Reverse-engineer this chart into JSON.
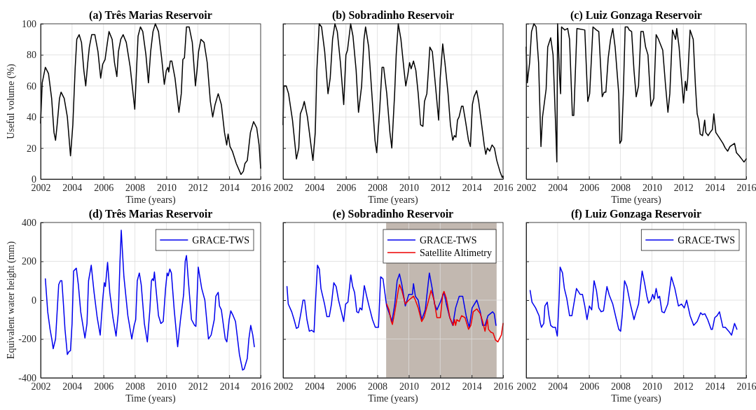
{
  "chart_data": [
    {
      "type": "line",
      "title": "(a) Três Marias Reservoir",
      "xlabel": "Time (years)",
      "ylabel": "Useful volume (%)",
      "xlim": [
        2002,
        2016
      ],
      "xticks": [
        2002,
        2004,
        2006,
        2008,
        2010,
        2012,
        2014,
        2016
      ],
      "ylim": [
        0,
        100
      ],
      "yticks": [
        0,
        20,
        40,
        60,
        80,
        100
      ],
      "grid": true,
      "series": [
        {
          "color": "#000000",
          "x": [
            2002,
            2002.1,
            2002.3,
            2002.5,
            2002.7,
            2002.85,
            2002.95,
            2003.05,
            2003.2,
            2003.3,
            2003.5,
            2003.7,
            2003.9,
            2004.05,
            2004.2,
            2004.3,
            2004.45,
            2004.6,
            2004.75,
            2004.87,
            2005.0,
            2005.1,
            2005.25,
            2005.45,
            2005.65,
            2005.82,
            2005.95,
            2006.1,
            2006.25,
            2006.35,
            2006.55,
            2006.7,
            2006.85,
            2006.95,
            2007.1,
            2007.25,
            2007.45,
            2007.7,
            2007.99,
            2008.1,
            2008.2,
            2008.35,
            2008.5,
            2008.7,
            2008.86,
            2009.0,
            2009.15,
            2009.3,
            2009.5,
            2009.7,
            2009.87,
            2010.0,
            2010.1,
            2010.15,
            2010.25,
            2010.35,
            2010.55,
            2010.8,
            2010.95,
            2011.05,
            2011.15,
            2011.28,
            2011.45,
            2011.65,
            2011.85,
            2011.95,
            2012.05,
            2012.2,
            2012.4,
            2012.6,
            2012.8,
            2012.95,
            2013.1,
            2013.3,
            2013.5,
            2013.7,
            2013.84,
            2013.93,
            2014.05,
            2014.2,
            2014.45,
            2014.75,
            2014.9,
            2015.0,
            2015.15,
            2015.35,
            2015.55,
            2015.75,
            2015.9,
            2016
          ],
          "values": [
            36,
            62,
            72,
            68,
            52,
            30,
            25,
            35,
            52,
            56,
            52,
            40,
            15,
            35,
            72,
            90,
            93,
            88,
            70,
            60,
            75,
            85,
            93,
            93,
            82,
            65,
            74,
            77,
            88,
            95,
            90,
            75,
            66,
            82,
            90,
            93,
            88,
            72,
            45,
            70,
            92,
            98,
            95,
            80,
            62,
            82,
            95,
            100,
            95,
            78,
            61,
            70,
            72,
            69,
            76,
            76,
            65,
            43,
            55,
            77,
            78,
            98,
            98,
            88,
            60,
            70,
            82,
            90,
            88,
            75,
            50,
            40,
            48,
            55,
            48,
            30,
            22,
            29,
            21,
            18,
            10,
            3,
            5,
            10,
            12,
            30,
            37,
            33,
            22,
            7
          ]
        }
      ]
    },
    {
      "type": "line",
      "title": "(b) Sobradinho Reservoir",
      "xlabel": "Time (years)",
      "xlim": [
        2002,
        2016
      ],
      "xticks": [
        2002,
        2004,
        2006,
        2008,
        2010,
        2012,
        2014,
        2016
      ],
      "ylim": [
        0,
        100
      ],
      "yticks": [
        0,
        20,
        40,
        60,
        80,
        100
      ],
      "grid": true,
      "tick_labels": "x",
      "series": [
        {
          "color": "#000000",
          "x": [
            2002,
            2002.05,
            2002.2,
            2002.35,
            2002.6,
            2002.85,
            2003.0,
            2003.1,
            2003.25,
            2003.35,
            2003.55,
            2003.8,
            2003.9,
            2004.05,
            2004.15,
            2004.3,
            2004.45,
            2004.65,
            2004.86,
            2005.0,
            2005.15,
            2005.3,
            2005.45,
            2005.65,
            2005.86,
            2006.0,
            2006.1,
            2006.3,
            2006.45,
            2006.65,
            2006.8,
            2007.0,
            2007.15,
            2007.25,
            2007.45,
            2007.65,
            2007.85,
            2007.96,
            2008.15,
            2008.3,
            2008.4,
            2008.6,
            2008.8,
            2008.92,
            2009.1,
            2009.2,
            2009.33,
            2009.5,
            2009.7,
            2009.81,
            2009.95,
            2010.05,
            2010.15,
            2010.3,
            2010.45,
            2010.6,
            2010.75,
            2010.9,
            2011.0,
            2011.15,
            2011.25,
            2011.34,
            2011.5,
            2011.7,
            2011.9,
            2012.0,
            2012.16,
            2012.3,
            2012.5,
            2012.65,
            2012.8,
            2012.9,
            2013.0,
            2013.1,
            2013.2,
            2013.36,
            2013.45,
            2013.6,
            2013.8,
            2013.92,
            2014.05,
            2014.15,
            2014.32,
            2014.45,
            2014.6,
            2014.8,
            2014.9,
            2015.0,
            2015.15,
            2015.3,
            2015.45,
            2015.6,
            2015.8,
            2015.95,
            2016
          ],
          "values": [
            35,
            60,
            60,
            55,
            38,
            13,
            20,
            42,
            46,
            50,
            40,
            20,
            12,
            30,
            70,
            100,
            98,
            82,
            55,
            65,
            90,
            100,
            95,
            75,
            48,
            80,
            83,
            100,
            92,
            70,
            43,
            60,
            90,
            98,
            85,
            55,
            25,
            17,
            45,
            72,
            72,
            55,
            30,
            20,
            55,
            80,
            100,
            90,
            70,
            60,
            68,
            75,
            71,
            76,
            70,
            55,
            35,
            34,
            50,
            55,
            70,
            85,
            82,
            60,
            38,
            65,
            87,
            75,
            55,
            35,
            25,
            28,
            27,
            38,
            40,
            47,
            47,
            38,
            25,
            21,
            48,
            53,
            57,
            50,
            38,
            22,
            16,
            20,
            18,
            22,
            20,
            12,
            5,
            1,
            2
          ]
        }
      ]
    },
    {
      "type": "line",
      "title": "(c) Luiz Gonzaga Reservoir",
      "xlabel": "Time (years)",
      "xlim": [
        2002,
        2016
      ],
      "xticks": [
        2002,
        2004,
        2006,
        2008,
        2010,
        2012,
        2014,
        2016
      ],
      "ylim": [
        0,
        100
      ],
      "yticks": [
        0,
        20,
        40,
        60,
        80,
        100
      ],
      "grid": true,
      "tick_labels": "x",
      "series": [
        {
          "color": "#000000",
          "x": [
            2002,
            2002.07,
            2002.22,
            2002.34,
            2002.49,
            2002.63,
            2002.79,
            2002.94,
            2003.04,
            2003.27,
            2003.37,
            2003.56,
            2003.71,
            2003.89,
            2003.95,
            2004.0,
            2004.13,
            2004.19,
            2004.25,
            2004.46,
            2004.64,
            2004.76,
            2004.94,
            2005.03,
            2005.23,
            2005.73,
            2005.92,
            2006.04,
            2006.25,
            2006.47,
            2006.62,
            2006.84,
            2006.96,
            2007.07,
            2007.22,
            2007.37,
            2007.51,
            2007.66,
            2007.89,
            2007.96,
            2008.07,
            2008.18,
            2008.3,
            2008.45,
            2008.56,
            2008.71,
            2008.86,
            2009.0,
            2009.15,
            2009.3,
            2009.45,
            2009.6,
            2009.75,
            2009.94,
            2010.12,
            2010.27,
            2010.42,
            2010.69,
            2010.87,
            2011.02,
            2011.14,
            2011.31,
            2011.51,
            2011.58,
            2011.73,
            2011.88,
            2012.01,
            2012.13,
            2012.21,
            2012.28,
            2012.43,
            2012.63,
            2012.77,
            2012.88,
            2012.98,
            2013.07,
            2013.22,
            2013.36,
            2013.43,
            2013.58,
            2013.7,
            2013.85,
            2013.94,
            2014.07,
            2014.27,
            2014.52,
            2014.67,
            2014.82,
            2014.97,
            2015.26,
            2015.38,
            2015.56,
            2015.71,
            2015.86,
            2016
          ],
          "values": [
            85,
            62,
            75,
            95,
            100,
            98,
            75,
            21,
            40,
            58,
            85,
            91,
            80,
            30,
            11,
            100,
            65,
            55,
            98,
            96,
            97,
            90,
            41,
            41,
            97,
            96,
            50,
            55,
            98,
            96,
            95,
            53,
            56,
            56,
            78,
            90,
            97,
            85,
            55,
            23,
            25,
            55,
            98,
            98,
            96,
            95,
            70,
            53,
            60,
            95,
            95,
            85,
            80,
            47,
            52,
            93,
            90,
            83,
            60,
            43,
            55,
            96,
            90,
            97,
            85,
            65,
            49,
            63,
            57,
            65,
            96,
            90,
            60,
            42,
            38,
            29,
            28,
            38,
            30,
            28,
            30,
            32,
            42,
            30,
            27,
            23,
            20,
            18,
            21,
            23,
            17,
            15,
            13,
            11,
            13
          ]
        }
      ]
    },
    {
      "type": "line",
      "title": "(d) Três Marias Reservoir",
      "xlabel": "Time (years)",
      "ylabel": "Equivalent water height (mm)",
      "xlim": [
        2002,
        2016
      ],
      "xticks": [
        2002,
        2004,
        2006,
        2008,
        2010,
        2012,
        2014,
        2016
      ],
      "ylim": [
        -400,
        400
      ],
      "yticks": [
        -400,
        -200,
        0,
        200,
        400
      ],
      "grid": true,
      "legend": "top right",
      "series": [
        {
          "name": "GRACE-TWS",
          "color": "#0000ee",
          "x": [
            2002.3,
            2002.45,
            2002.6,
            2002.72,
            2002.8,
            2002.95,
            2003.05,
            2003.15,
            2003.26,
            2003.35,
            2003.45,
            2003.55,
            2003.7,
            2003.8,
            2003.9,
            2004.0,
            2004.1,
            2004.27,
            2004.4,
            2004.55,
            2004.82,
            2004.95,
            2005.05,
            2005.22,
            2005.4,
            2005.6,
            2005.79,
            2005.95,
            2006.05,
            2006.12,
            2006.26,
            2006.4,
            2006.6,
            2006.8,
            2006.95,
            2007.05,
            2007.13,
            2007.17,
            2007.3,
            2007.55,
            2007.8,
            2007.95,
            2008.05,
            2008.15,
            2008.28,
            2008.4,
            2008.6,
            2008.79,
            2008.95,
            2009.05,
            2009.12,
            2009.18,
            2009.24,
            2009.35,
            2009.5,
            2009.65,
            2009.8,
            2009.95,
            2010.05,
            2010.12,
            2010.22,
            2010.32,
            2010.5,
            2010.72,
            2010.9,
            2011.1,
            2011.2,
            2011.28,
            2011.4,
            2011.6,
            2011.8,
            2011.88,
            2012.03,
            2012.25,
            2012.45,
            2012.68,
            2012.85,
            2013.05,
            2013.15,
            2013.3,
            2013.38,
            2013.5,
            2013.75,
            2013.85,
            2014.0,
            2014.1,
            2014.25,
            2014.4,
            2014.65,
            2014.85,
            2014.95,
            2015.15,
            2015.25,
            2015.37,
            2015.5,
            2015.6
          ],
          "values": [
            110,
            -60,
            -150,
            -205,
            -250,
            -200,
            -60,
            80,
            100,
            100,
            -20,
            -150,
            -280,
            -265,
            -260,
            -120,
            150,
            165,
            80,
            -60,
            -195,
            -120,
            100,
            180,
            40,
            -90,
            -180,
            0,
            90,
            70,
            195,
            40,
            -90,
            -185,
            -60,
            200,
            360,
            300,
            120,
            -80,
            -200,
            -130,
            -100,
            100,
            140,
            80,
            -120,
            -215,
            -50,
            100,
            110,
            100,
            145,
            50,
            -80,
            -120,
            -110,
            60,
            140,
            125,
            160,
            140,
            -50,
            -240,
            -100,
            30,
            200,
            230,
            100,
            -100,
            -130,
            -135,
            170,
            60,
            0,
            -200,
            -180,
            -100,
            20,
            40,
            -30,
            -50,
            -200,
            -215,
            -100,
            -55,
            -80,
            -110,
            -280,
            -360,
            -355,
            -300,
            -200,
            -130,
            -180,
            -240
          ]
        }
      ]
    },
    {
      "type": "line",
      "title": "(e) Sobradinho Reservoir",
      "xlabel": "Time (years)",
      "xlim": [
        2002,
        2016
      ],
      "xticks": [
        2002,
        2004,
        2006,
        2008,
        2010,
        2012,
        2014,
        2016
      ],
      "ylim": [
        -400,
        400
      ],
      "yticks": [
        -400,
        -200,
        0,
        200,
        400
      ],
      "grid": true,
      "tick_labels": "x",
      "legend": "top right",
      "bands": [
        {
          "axis": "x",
          "from": 2008.56,
          "to": 2015.59,
          "color": "#c2b8b0"
        }
      ],
      "series": [
        {
          "name": "GRACE-TWS",
          "color": "#0000ee",
          "x": [
            2002.25,
            2002.33,
            2002.55,
            2002.7,
            2002.85,
            2002.97,
            2003.15,
            2003.27,
            2003.37,
            2003.52,
            2003.67,
            2003.82,
            2003.97,
            2004.07,
            2004.19,
            2004.31,
            2004.41,
            2004.64,
            2004.79,
            2004.94,
            2005.08,
            2005.23,
            2005.38,
            2005.53,
            2005.68,
            2005.86,
            2005.98,
            2006.13,
            2006.31,
            2006.43,
            2006.55,
            2006.69,
            2006.8,
            2006.9,
            2007.02,
            2007.17,
            2007.32,
            2007.47,
            2007.69,
            2007.87,
            2008.07,
            2008.21,
            2008.36,
            2008.59,
            2008.81,
            2008.93,
            2009.11,
            2009.26,
            2009.41,
            2009.56,
            2009.78,
            2010.0,
            2010.23,
            2010.3,
            2010.42,
            2010.6,
            2010.82,
            2011.05,
            2011.31,
            2011.49,
            2011.64,
            2011.79,
            2012.01,
            2012.24,
            2012.39,
            2012.61,
            2012.8,
            2012.98,
            2013.21,
            2013.43,
            2013.65,
            2013.85,
            2014.03,
            2014.33,
            2014.55,
            2014.7,
            2014.85,
            2015.04,
            2015.34,
            2015.44,
            2015.55
          ],
          "values": [
            70,
            -20,
            -60,
            -100,
            -145,
            -140,
            -60,
            0,
            0,
            -100,
            -160,
            -155,
            -165,
            0,
            180,
            160,
            60,
            -20,
            -85,
            -85,
            -20,
            90,
            70,
            0,
            -50,
            -110,
            -20,
            -10,
            130,
            70,
            40,
            -60,
            -65,
            -40,
            -50,
            75,
            20,
            -30,
            -100,
            -140,
            -140,
            120,
            110,
            -30,
            -80,
            -110,
            -20,
            100,
            135,
            80,
            -30,
            30,
            30,
            85,
            20,
            0,
            -100,
            -50,
            140,
            60,
            -20,
            -50,
            -10,
            40,
            -20,
            -90,
            -130,
            -40,
            20,
            20,
            -80,
            -140,
            -40,
            0,
            -60,
            -130,
            -130,
            -80,
            -60,
            -70,
            -130
          ]
        },
        {
          "name": "Satellite Altimetry",
          "color": "#ee0000",
          "x": [
            2008.59,
            2008.74,
            2008.89,
            2008.96,
            2009.11,
            2009.33,
            2009.41,
            2009.56,
            2009.78,
            2010.0,
            2010.3,
            2010.42,
            2010.6,
            2010.82,
            2010.97,
            2011.2,
            2011.42,
            2011.61,
            2011.79,
            2012.01,
            2012.16,
            2012.24,
            2012.39,
            2012.61,
            2012.83,
            2012.91,
            2012.98,
            2013.06,
            2013.21,
            2013.36,
            2013.58,
            2013.8,
            2013.95,
            2014.1,
            2014.33,
            2014.55,
            2014.7,
            2014.85,
            2015.0,
            2015.07,
            2015.22,
            2015.37,
            2015.52,
            2015.67,
            2015.89,
            2016.0
          ],
          "values": [
            -20,
            -50,
            -110,
            -125,
            -60,
            50,
            80,
            50,
            -20,
            0,
            20,
            0,
            -40,
            -110,
            -90,
            -20,
            50,
            0,
            -90,
            -90,
            30,
            45,
            10,
            -90,
            -130,
            -100,
            -130,
            -100,
            -110,
            -80,
            -90,
            -150,
            -130,
            -60,
            -45,
            -70,
            -110,
            -160,
            -100,
            -150,
            -165,
            -170,
            -205,
            -215,
            -180,
            -120
          ]
        }
      ]
    },
    {
      "type": "line",
      "title": "(f) Luiz Gonzaga Reservoir",
      "xlabel": "Time (years)",
      "xlim": [
        2002,
        2016
      ],
      "xticks": [
        2002,
        2004,
        2006,
        2008,
        2010,
        2012,
        2014,
        2016
      ],
      "ylim": [
        -400,
        400
      ],
      "yticks": [
        -400,
        -200,
        0,
        200,
        400
      ],
      "grid": true,
      "tick_labels": "x",
      "legend": "top right",
      "series": [
        {
          "name": "GRACE-TWS",
          "color": "#0000ee",
          "x": [
            2002.25,
            2002.37,
            2002.6,
            2002.82,
            2002.89,
            2002.97,
            2003.04,
            2003.12,
            2003.19,
            2003.34,
            2003.45,
            2003.56,
            2003.71,
            2003.86,
            2003.98,
            2004.09,
            2004.16,
            2004.31,
            2004.43,
            2004.58,
            2004.76,
            2004.91,
            2005.2,
            2005.43,
            2005.58,
            2005.73,
            2005.87,
            2006.02,
            2006.17,
            2006.32,
            2006.47,
            2006.62,
            2006.77,
            2006.92,
            2007.14,
            2007.29,
            2007.51,
            2007.74,
            2007.89,
            2008.01,
            2008.11,
            2008.26,
            2008.41,
            2008.63,
            2008.86,
            2009.0,
            2009.15,
            2009.38,
            2009.53,
            2009.68,
            2009.79,
            2009.94,
            2010.05,
            2010.15,
            2010.27,
            2010.39,
            2010.49,
            2010.64,
            2010.79,
            2011.01,
            2011.24,
            2011.46,
            2011.69,
            2011.88,
            2012.06,
            2012.21,
            2012.43,
            2012.66,
            2012.88,
            2013.1,
            2013.22,
            2013.37,
            2013.55,
            2013.77,
            2013.85,
            2014.0,
            2014.15,
            2014.3,
            2014.52,
            2014.67,
            2014.89,
            2015.07,
            2015.26,
            2015.41
          ],
          "values": [
            50,
            -10,
            -40,
            -80,
            -115,
            -140,
            -130,
            -120,
            -30,
            -10,
            -80,
            -130,
            -140,
            -140,
            -185,
            0,
            170,
            140,
            60,
            10,
            -80,
            -80,
            60,
            30,
            30,
            -30,
            -100,
            -30,
            -50,
            100,
            50,
            -40,
            -60,
            -55,
            70,
            25,
            -20,
            -100,
            -150,
            -160,
            -80,
            100,
            70,
            -20,
            -100,
            -60,
            -20,
            150,
            90,
            20,
            -15,
            0,
            30,
            5,
            60,
            10,
            20,
            -60,
            -65,
            -20,
            120,
            60,
            -30,
            -20,
            -40,
            0,
            -80,
            -130,
            -110,
            -65,
            -75,
            -70,
            -100,
            -150,
            -150,
            -90,
            -80,
            -60,
            -140,
            -140,
            -160,
            -180,
            -120,
            -150
          ]
        }
      ]
    }
  ]
}
